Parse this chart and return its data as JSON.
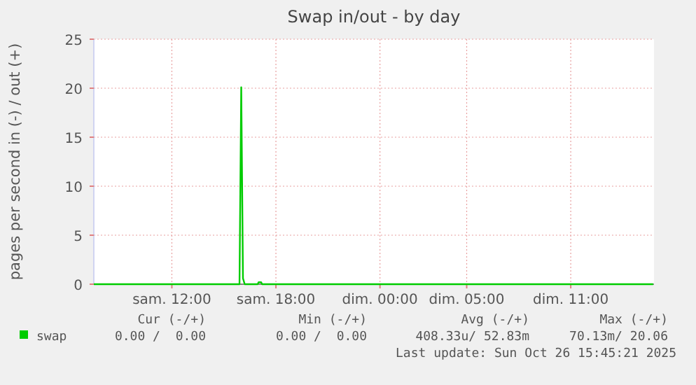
{
  "chart_data": {
    "type": "line",
    "title": "Swap in/out - by day",
    "ylabel": "pages per second in (-) / out (+)",
    "x": [
      "2025-10-25T07:30",
      "2025-10-25T15:54",
      "2025-10-25T16:00",
      "2025-10-25T16:06",
      "2025-10-25T16:12",
      "2025-10-25T16:57",
      "2025-10-25T17:00",
      "2025-10-25T17:09",
      "2025-10-25T17:12",
      "2025-10-26T15:45"
    ],
    "series": [
      {
        "name": "swap",
        "color": "#00cc00",
        "values": [
          0,
          0,
          20.1,
          0.6,
          0,
          0,
          0.2,
          0.2,
          0,
          0
        ]
      }
    ],
    "xlim": [
      "2025-10-25T07:30",
      "2025-10-26T15:48"
    ],
    "xticks": [
      {
        "value": "2025-10-25T12:00",
        "label": "sam. 12:00"
      },
      {
        "value": "2025-10-25T18:00",
        "label": "sam. 18:00"
      },
      {
        "value": "2025-10-26T00:00",
        "label": "dim. 00:00"
      },
      {
        "value": "2025-10-26T05:00",
        "label": "dim. 05:00"
      },
      {
        "value": "2025-10-26T11:00",
        "label": "dim. 11:00"
      }
    ],
    "ylim": [
      0,
      25
    ],
    "yticks": [
      0,
      5,
      10,
      15,
      20,
      25
    ],
    "grid": true,
    "legend": "bottom",
    "marker": "none",
    "line_style": "solid",
    "annotations": [
      "Cur (-/+)",
      "Min (-/+)",
      "Avg (-/+)",
      "Max (-/+)",
      "0.00 /  0.00",
      "0.00 /  0.00",
      "408.33u/ 52.83m",
      "70.13m/ 20.06",
      "Last update: Sun Oct 26 15:45:21 2025"
    ]
  }
}
